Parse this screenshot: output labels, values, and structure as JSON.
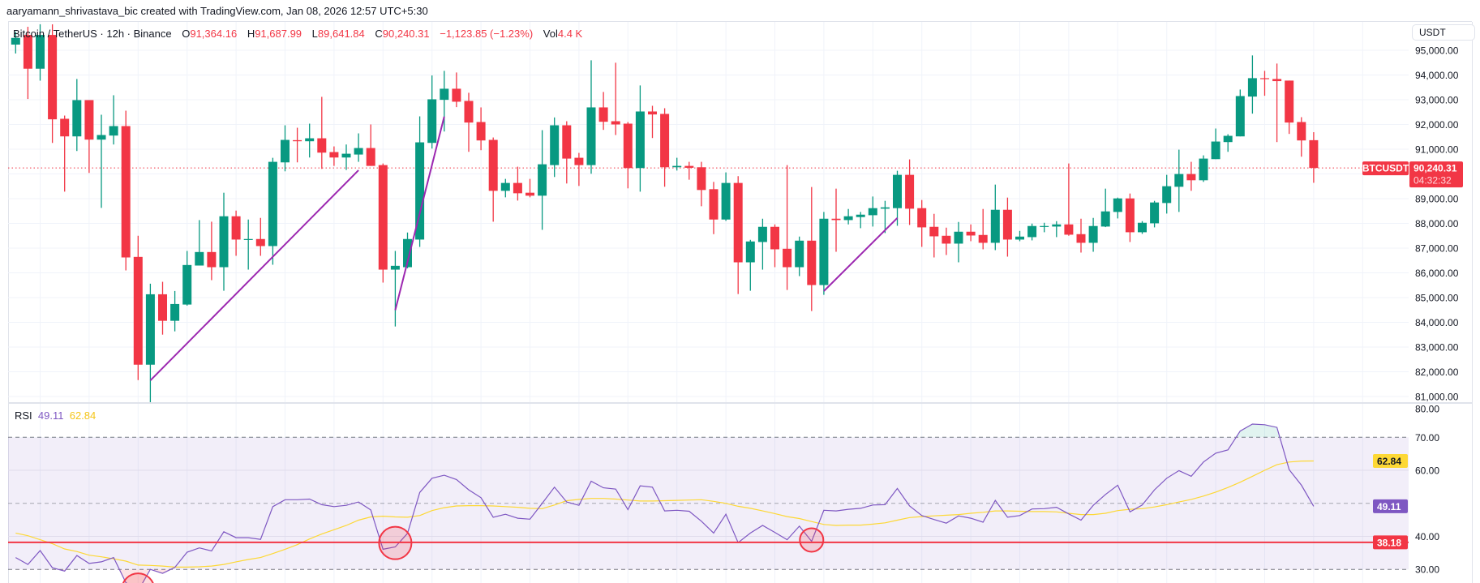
{
  "header": {
    "attribution": "aaryamann_shrivastava_bic created with TradingView.com, Jan 08, 2026 12:57 UTC+5:30"
  },
  "legend": {
    "symbol": "Bitcoin / TetherUS · 12h · Binance",
    "o_label": "O",
    "o": "91,364.16",
    "h_label": "H",
    "h": "91,687.99",
    "l_label": "L",
    "l": "89,641.84",
    "c_label": "C",
    "c": "90,240.31",
    "change": "−1,123.85 (−1.23%)",
    "vol_label": "Vol",
    "vol": "4.4 K"
  },
  "price_axis": {
    "currency": "USDT",
    "ticks": [
      {
        "value": 95000,
        "label": "95,000.00"
      },
      {
        "value": 94000,
        "label": "94,000.00"
      },
      {
        "value": 93000,
        "label": "93,000.00"
      },
      {
        "value": 92000,
        "label": "92,000.00"
      },
      {
        "value": 91000,
        "label": "91,000.00"
      },
      {
        "value": 89000,
        "label": "89,000.00"
      },
      {
        "value": 88000,
        "label": "88,000.00"
      },
      {
        "value": 87000,
        "label": "87,000.00"
      },
      {
        "value": 86000,
        "label": "86,000.00"
      },
      {
        "value": 85000,
        "label": "85,000.00"
      },
      {
        "value": 84000,
        "label": "84,000.00"
      },
      {
        "value": 83000,
        "label": "83,000.00"
      },
      {
        "value": 82000,
        "label": "82,000.00"
      },
      {
        "value": 81000,
        "label": "81,000.00"
      }
    ]
  },
  "last_price": {
    "symbol_tag": "BTCUSDT",
    "price": "90,240.31",
    "countdown": "04:32:32"
  },
  "rsi": {
    "label": "RSI",
    "value": "49.11",
    "ma_value": "62.84",
    "hline_label": "38.18",
    "axis_ticks": [
      {
        "value": 80,
        "label": "80.00"
      },
      {
        "value": 70,
        "label": "70.00"
      },
      {
        "value": 60,
        "label": "60.00"
      },
      {
        "value": 40,
        "label": "40.00"
      },
      {
        "value": 30,
        "label": "30.00"
      }
    ]
  },
  "colors": {
    "up": "#089981",
    "down": "#f23645",
    "trend_line": "#9c27b0",
    "rsi_line": "#7e57c2",
    "rsi_ma": "#fdd835",
    "rsi_band": "#7e57c2",
    "hline": "#f23645",
    "grid": "#f0f3fa"
  },
  "chart_data": [
    {
      "type": "candlestick",
      "symbol": "BTCUSDT",
      "interval": "12h",
      "ylim": [
        80500,
        96150
      ],
      "last_price": 90240.31,
      "ohlc": [
        [
          95230,
          95750,
          94870,
          95500
        ],
        [
          95620,
          95950,
          93030,
          94255
        ],
        [
          94255,
          96050,
          93770,
          95620
        ],
        [
          95620,
          96050,
          91255,
          92208
        ],
        [
          92230,
          92360,
          89284,
          91518
        ],
        [
          91518,
          93839,
          90927,
          92985
        ],
        [
          92985,
          92985,
          90040,
          91387
        ],
        [
          91387,
          92394,
          88627,
          91573
        ],
        [
          91551,
          93182,
          91190,
          91934
        ],
        [
          91934,
          92558,
          86097,
          86623
        ],
        [
          86645,
          87499,
          81663,
          82287
        ],
        [
          82287,
          85561,
          80743,
          85134
        ],
        [
          85134,
          85638,
          83502,
          84061
        ],
        [
          84061,
          85266,
          83634,
          84740
        ],
        [
          84718,
          86886,
          84674,
          86317
        ],
        [
          86295,
          88134,
          86295,
          86842
        ],
        [
          86842,
          88069,
          85704,
          86229
        ],
        [
          86229,
          89240,
          85276,
          88288
        ],
        [
          88288,
          88518,
          86689,
          87346
        ],
        [
          87346,
          88156,
          86131,
          87368
        ],
        [
          87368,
          88222,
          86689,
          87083
        ],
        [
          87083,
          90653,
          86328,
          90489
        ],
        [
          90467,
          91967,
          90105,
          91376
        ],
        [
          91365,
          91868,
          90467,
          91321
        ],
        [
          91321,
          92033,
          90664,
          91441
        ],
        [
          91441,
          93117,
          90204,
          90861
        ],
        [
          90883,
          91113,
          90324,
          90664
        ],
        [
          90664,
          91190,
          90160,
          90817
        ],
        [
          90784,
          91639,
          90489,
          91047
        ],
        [
          91047,
          92000,
          90324,
          90324
        ],
        [
          90357,
          90423,
          85605,
          86130
        ],
        [
          86130,
          86886,
          83831,
          86284
        ],
        [
          86229,
          87631,
          86186,
          87368
        ],
        [
          87346,
          92328,
          87050,
          91277
        ],
        [
          91255,
          93982,
          91025,
          93018
        ],
        [
          92996,
          94168,
          91715,
          93445
        ],
        [
          93445,
          94102,
          92701,
          92920
        ],
        [
          92952,
          93281,
          90894,
          92077
        ],
        [
          92099,
          92690,
          90960,
          91354
        ],
        [
          91376,
          91474,
          88069,
          89317
        ],
        [
          89317,
          89799,
          89054,
          89635
        ],
        [
          89635,
          90292,
          88923,
          89218
        ],
        [
          89240,
          89799,
          89054,
          89120
        ],
        [
          89120,
          91770,
          87740,
          90390
        ],
        [
          90357,
          92284,
          89876,
          91967
        ],
        [
          91967,
          92131,
          89613,
          90620
        ],
        [
          90653,
          90850,
          89514,
          90357
        ],
        [
          90357,
          94595,
          90007,
          92690
        ],
        [
          92690,
          93314,
          91781,
          92109
        ],
        [
          92131,
          94497,
          91573,
          92000
        ],
        [
          92033,
          92099,
          89416,
          90237
        ],
        [
          90237,
          93577,
          89284,
          92525
        ],
        [
          92525,
          92755,
          91452,
          92405
        ],
        [
          92427,
          92657,
          89482,
          90270
        ],
        [
          90270,
          90653,
          90138,
          90324
        ],
        [
          90324,
          90489,
          89766,
          90248
        ],
        [
          90270,
          90489,
          88693,
          89350
        ],
        [
          89383,
          89678,
          87565,
          88156
        ],
        [
          88156,
          90062,
          88101,
          89635
        ],
        [
          89635,
          89908,
          85145,
          86426
        ],
        [
          86426,
          87335,
          85276,
          87269
        ],
        [
          87247,
          88189,
          86130,
          87861
        ],
        [
          87861,
          87959,
          86229,
          86952
        ],
        [
          86974,
          90357,
          85309,
          86229
        ],
        [
          86229,
          87467,
          85868,
          87302
        ],
        [
          87302,
          89470,
          84455,
          85507
        ],
        [
          85507,
          88463,
          85112,
          88189
        ],
        [
          88189,
          89405,
          86853,
          88134
        ],
        [
          88134,
          88583,
          87959,
          88288
        ],
        [
          88255,
          88463,
          87806,
          88353
        ],
        [
          88331,
          89087,
          87872,
          88616
        ],
        [
          88594,
          88912,
          87609,
          88649
        ],
        [
          88616,
          90127,
          87904,
          89963
        ],
        [
          89963,
          90587,
          87937,
          88594
        ],
        [
          88616,
          88945,
          87050,
          87839
        ],
        [
          87861,
          88386,
          86623,
          87477
        ],
        [
          87499,
          87828,
          86722,
          87182
        ],
        [
          87182,
          88058,
          86426,
          87664
        ],
        [
          87664,
          87959,
          87280,
          87510
        ],
        [
          87532,
          88583,
          86952,
          87215
        ],
        [
          87215,
          89569,
          86919,
          88550
        ],
        [
          88550,
          89043,
          86656,
          87346
        ],
        [
          87346,
          87696,
          87280,
          87466
        ],
        [
          87445,
          87992,
          87313,
          87894
        ],
        [
          87872,
          88025,
          87642,
          87894
        ],
        [
          87872,
          88090,
          87445,
          87959
        ],
        [
          87959,
          90423,
          87500,
          87543
        ],
        [
          87565,
          88189,
          86820,
          87215
        ],
        [
          87215,
          88222,
          86853,
          87894
        ],
        [
          87872,
          89405,
          87850,
          88485
        ],
        [
          88463,
          89043,
          88200,
          89010
        ],
        [
          89010,
          89208,
          87247,
          87642
        ],
        [
          87642,
          88090,
          87576,
          88025
        ],
        [
          88003,
          88912,
          87839,
          88846
        ],
        [
          88824,
          89963,
          88397,
          89503
        ],
        [
          89481,
          90981,
          88463,
          89996
        ],
        [
          89996,
          90489,
          89317,
          89744
        ],
        [
          89744,
          90751,
          89678,
          90620
        ],
        [
          90598,
          91836,
          90598,
          91310
        ],
        [
          91288,
          91605,
          90894,
          91540
        ],
        [
          91518,
          93412,
          91518,
          93149
        ],
        [
          93128,
          94792,
          92438,
          93872
        ],
        [
          93872,
          94168,
          93160,
          93850
        ],
        [
          93839,
          94463,
          91288,
          93752
        ],
        [
          93774,
          93774,
          91617,
          92077
        ],
        [
          92099,
          92295,
          90697,
          91354
        ],
        [
          91364.16,
          91687.99,
          89641.84,
          90240.31
        ]
      ],
      "trend_lines": [
        {
          "from": {
            "bar": 12,
            "price": 81650
          },
          "to": {
            "bar": 29,
            "price": 90150
          }
        },
        {
          "from": {
            "bar": 32,
            "price": 84490
          },
          "to": {
            "bar": 36,
            "price": 92320
          }
        },
        {
          "from": {
            "bar": 67,
            "price": 85260
          },
          "to": {
            "bar": 73,
            "price": 88220
          }
        }
      ]
    },
    {
      "type": "line",
      "ylim": [
        22,
        80
      ],
      "levels": {
        "upper": 70,
        "middle": 50,
        "lower": 30
      },
      "horizontal_line": 38.18,
      "series": [
        {
          "name": "RSI",
          "values": [
            33.6,
            31.5,
            35.7,
            30.5,
            29.5,
            34.2,
            31.8,
            32.3,
            33.6,
            26.0,
            23.5,
            30.0,
            28.8,
            30.6,
            35.2,
            36.5,
            35.6,
            41.4,
            39.6,
            39.6,
            39.1,
            49.0,
            51.1,
            51.1,
            51.3,
            49.6,
            49.0,
            49.4,
            50.4,
            48.0,
            36.1,
            36.8,
            40.9,
            53.3,
            57.6,
            58.5,
            57.2,
            54.1,
            51.7,
            45.8,
            46.7,
            45.5,
            45.2,
            50.0,
            54.9,
            50.4,
            49.4,
            56.7,
            54.7,
            54.3,
            48.1,
            55.3,
            54.9,
            47.7,
            47.9,
            47.6,
            44.6,
            41.0,
            46.7,
            38.1,
            41.0,
            43.3,
            41.2,
            39.0,
            43.1,
            38.5,
            47.9,
            47.7,
            48.2,
            48.5,
            49.5,
            49.6,
            54.5,
            49.2,
            46.3,
            45.1,
            44.0,
            46.2,
            45.5,
            44.3,
            50.9,
            45.8,
            46.3,
            48.3,
            48.4,
            48.8,
            46.8,
            44.9,
            49.4,
            52.7,
            55.5,
            47.4,
            49.5,
            54.1,
            57.6,
            59.9,
            58.2,
            62.5,
            65.2,
            66.2,
            71.9,
            74.0,
            73.8,
            73.0,
            60.2,
            55.5,
            49.11
          ]
        },
        {
          "values": [
            41.0,
            40.2,
            39.0,
            37.8,
            36.2,
            35.4,
            34.3,
            33.8,
            33.2,
            32.5,
            31.3,
            31.2,
            31.0,
            30.7,
            30.7,
            30.8,
            31.0,
            31.5,
            32.3,
            33.0,
            33.6,
            34.8,
            36.1,
            37.5,
            39.2,
            40.7,
            42.0,
            43.3,
            44.9,
            45.9,
            46.1,
            45.9,
            45.8,
            46.3,
            47.8,
            48.7,
            49.2,
            49.3,
            49.3,
            49.2,
            49.0,
            48.8,
            48.5,
            48.4,
            49.5,
            50.8,
            51.2,
            51.5,
            51.5,
            51.3,
            51.0,
            50.7,
            50.7,
            50.8,
            50.9,
            51.0,
            51.1,
            50.6,
            50.0,
            49.1,
            48.5,
            47.7,
            46.9,
            46.0,
            45.4,
            44.5,
            43.6,
            43.3,
            43.4,
            43.4,
            43.7,
            44.1,
            44.9,
            45.7,
            46.0,
            46.2,
            46.4,
            46.6,
            47.0,
            47.3,
            47.7,
            47.7,
            47.6,
            47.5,
            47.5,
            47.4,
            47.0,
            46.6,
            46.6,
            47.0,
            47.8,
            48.2,
            48.4,
            48.9,
            49.6,
            50.4,
            51.2,
            52.2,
            53.4,
            54.8,
            56.4,
            58.2,
            60.0,
            61.7,
            62.5,
            62.8,
            62.84
          ]
        }
      ],
      "circle_markers": [
        {
          "bar": 11,
          "value": 23.9
        },
        {
          "bar": 32,
          "value": 38.0
        },
        {
          "bar": 66,
          "value": 38.9
        }
      ]
    }
  ]
}
